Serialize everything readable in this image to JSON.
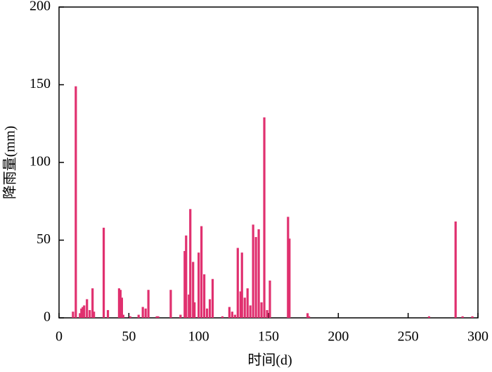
{
  "chart_data": {
    "type": "bar",
    "x_label": "时间(d)",
    "y_label": "降雨量(mm)",
    "x": [
      10,
      12,
      15,
      16,
      17,
      18,
      20,
      22,
      24,
      25,
      32,
      35,
      43,
      44,
      45,
      46,
      51,
      57,
      60,
      62,
      64,
      70,
      71,
      80,
      87,
      90,
      91,
      93,
      94,
      96,
      97,
      100,
      102,
      104,
      106,
      108,
      110,
      117,
      122,
      124,
      126,
      128,
      130,
      131,
      133,
      135,
      137,
      139,
      141,
      143,
      145,
      147,
      149,
      151,
      164,
      165,
      178,
      179,
      265,
      284,
      289,
      296
    ],
    "values": [
      4,
      149,
      3,
      6,
      7,
      8,
      12,
      5,
      19,
      4,
      58,
      5,
      19,
      18,
      13,
      2,
      1,
      2,
      7,
      6,
      18,
      1,
      1,
      18,
      2,
      43,
      53,
      15,
      70,
      36,
      10,
      42,
      59,
      28,
      6,
      12,
      25,
      1,
      7,
      4,
      2,
      45,
      17,
      42,
      13,
      19,
      8,
      60,
      52,
      57,
      10,
      129,
      5,
      24,
      65,
      51,
      3,
      1,
      1,
      62,
      1,
      1
    ],
    "color": "#e0306f",
    "xlim": [
      0,
      300
    ],
    "xticks": [
      0,
      50,
      100,
      150,
      200,
      250,
      300
    ],
    "ylim": [
      0,
      200
    ],
    "yticks": [
      0,
      50,
      100,
      150,
      200
    ]
  }
}
